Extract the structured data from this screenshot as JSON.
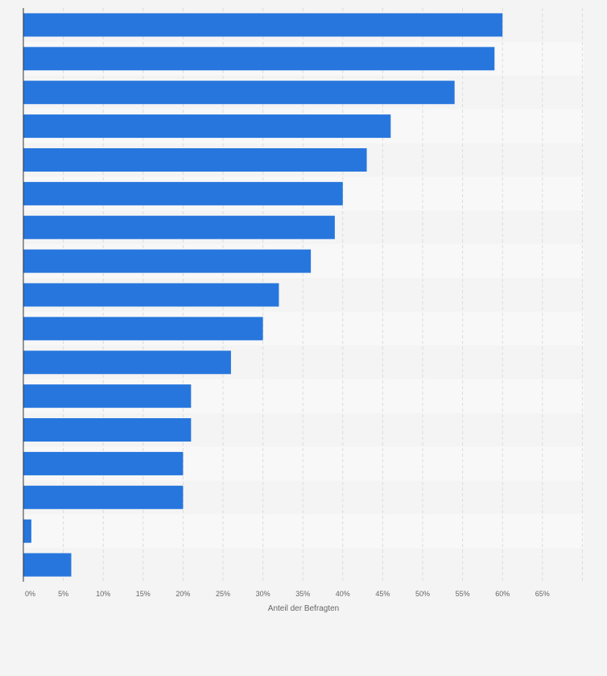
{
  "chart_data": {
    "type": "bar",
    "orientation": "horizontal",
    "categories": [
      "",
      "",
      "",
      "",
      "",
      "",
      "",
      "",
      "",
      "",
      "",
      "",
      "",
      "",
      "",
      "",
      ""
    ],
    "values": [
      60,
      59,
      54,
      46,
      43,
      40,
      39,
      36,
      32,
      30,
      26,
      21,
      21,
      20,
      20,
      1,
      6
    ],
    "xlim": [
      0,
      70
    ],
    "x_ticks": [
      "0%",
      "5%",
      "10%",
      "15%",
      "20%",
      "25%",
      "30%",
      "35%",
      "40%",
      "45%",
      "50%",
      "55%",
      "60%",
      "65%"
    ],
    "xlabel": "Anteil der Befragten",
    "bar_color": "#2776dd",
    "grid": true,
    "legend": "none"
  }
}
